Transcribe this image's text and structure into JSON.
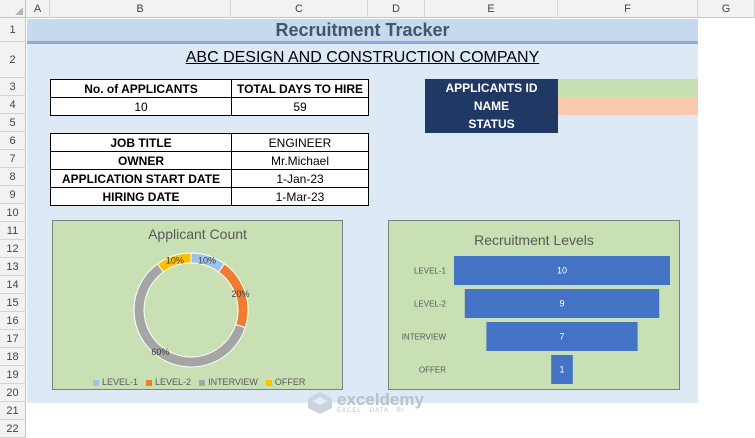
{
  "columns": [
    "A",
    "B",
    "C",
    "D",
    "E",
    "F",
    "G"
  ],
  "rows": [
    "1",
    "2",
    "3",
    "4",
    "5",
    "6",
    "7",
    "8",
    "9",
    "10",
    "11",
    "12",
    "13",
    "14",
    "15",
    "16",
    "17",
    "18",
    "19",
    "20",
    "21",
    "22"
  ],
  "sheet": {
    "title": "Recruitment Tracker",
    "company": "ABC DESIGN AND CONSTRUCTION COMPANY"
  },
  "summary": {
    "headers": [
      "No. of APPLICANTS",
      "TOTAL DAYS TO HIRE"
    ],
    "values": [
      "10",
      "59"
    ]
  },
  "job": [
    {
      "label": "JOB TITLE",
      "value": "ENGINEER"
    },
    {
      "label": "OWNER",
      "value": "Mr.Michael"
    },
    {
      "label": "APPLICATION START DATE",
      "value": "1-Jan-23"
    },
    {
      "label": "HIRING DATE",
      "value": "1-Mar-23"
    }
  ],
  "applicant": {
    "id_label": "APPLICANTS ID",
    "name_label": "NAME",
    "status_label": "STATUS"
  },
  "colors": {
    "level1": "#9dc3e6",
    "level2": "#ed7d31",
    "interview": "#a5a5a5",
    "offer": "#ffc000",
    "funnel": "#4472c4",
    "header_navy": "#1f3864"
  },
  "chart_data": [
    {
      "type": "pie",
      "title": "Applicant Count",
      "categories": [
        "LEVEL-1",
        "LEVEL-2",
        "INTERVIEW",
        "OFFER"
      ],
      "values": [
        10,
        20,
        60,
        10
      ],
      "labels": [
        "10%",
        "20%",
        "60%",
        "10%"
      ],
      "legend": "bottom"
    },
    {
      "type": "bar",
      "title": "Recruitment Levels",
      "categories": [
        "LEVEL-1",
        "LEVEL-2",
        "INTERVIEW",
        "OFFER"
      ],
      "values": [
        10,
        9,
        7,
        1
      ],
      "orientation": "horizontal-centered"
    }
  ],
  "watermark": {
    "brand": "exceldemy",
    "tagline": "EXCEL · DATA · BI"
  }
}
